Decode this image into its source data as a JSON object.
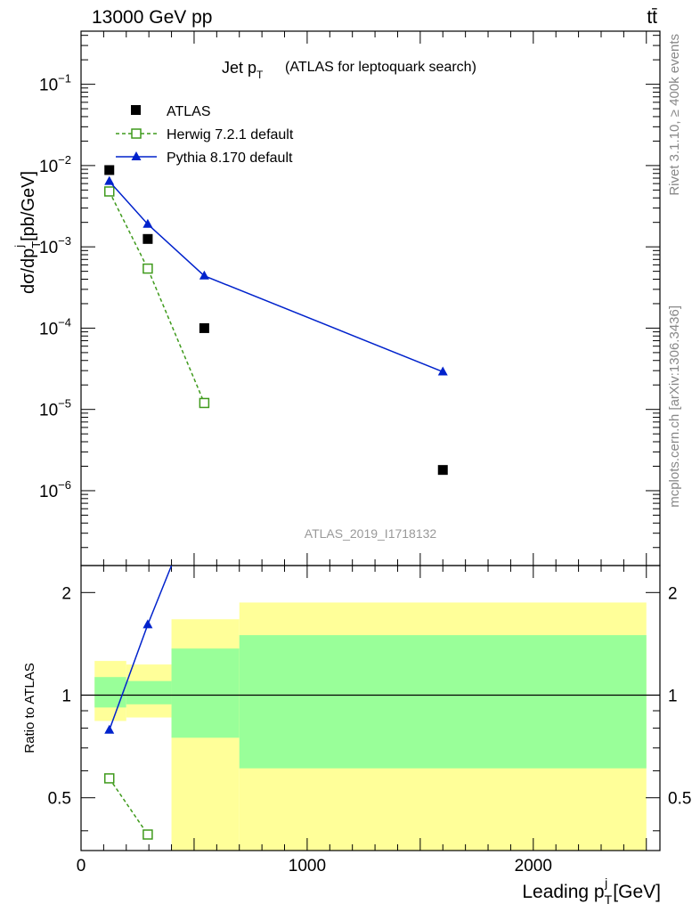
{
  "header": {
    "left": "13000 GeV pp",
    "right": "tt̄"
  },
  "side_text": {
    "upper": "Rivet 3.1.10, ≥ 400k events",
    "lower": "mcplots.cern.ch [arXiv:1306.3436]"
  },
  "watermark": "ATLAS_2019_I1718132",
  "chart_data": [
    {
      "type": "scatter",
      "title": "Jet p_T (ATLAS for leptoquark search)",
      "title_main": "Jet p",
      "title_sub": "T",
      "title_rest": "(ATLAS for leptoquark search)",
      "ylabel": "dσ/dp_T^j [pb/GeV]",
      "yscale": "log",
      "xlim": [
        0,
        2560
      ],
      "ylim": [
        1.2e-07,
        0.45
      ],
      "ytick_labels": [
        "10^-6",
        "10^-5",
        "10^-4",
        "10^-3",
        "10^-2",
        "10^-1"
      ],
      "legend_position": "top-left",
      "series": [
        {
          "name": "ATLAS",
          "marker": "square-filled",
          "color": "#000000",
          "x": [
            125,
            295,
            545,
            1600
          ],
          "y": [
            0.0088,
            0.00125,
            0.0001,
            1.8e-06
          ]
        },
        {
          "name": "Herwig 7.2.1 default",
          "marker": "square-open",
          "line": "dashed",
          "color": "#3f9a1c",
          "x": [
            125,
            295,
            545
          ],
          "y": [
            0.0048,
            0.00054,
            1.2e-05
          ]
        },
        {
          "name": "Pythia 8.170 default",
          "marker": "triangle-filled",
          "line": "solid",
          "color": "#0022cc",
          "x": [
            125,
            295,
            545,
            1600
          ],
          "y": [
            0.0064,
            0.0019,
            0.00044,
            2.9e-05
          ]
        }
      ]
    },
    {
      "type": "scatter",
      "ylabel": "Ratio to ATLAS",
      "yscale": "log",
      "xlabel": "Leading p_T^j [GeV]",
      "xlim": [
        0,
        2560
      ],
      "ylim": [
        0.35,
        2.4
      ],
      "xtick_labels": [
        "0",
        "1000",
        "2000"
      ],
      "ytick_labels": [
        "0.5",
        "1",
        "2"
      ],
      "bands": [
        {
          "x0": 60,
          "x1": 200,
          "yellow": [
            0.84,
            1.26
          ],
          "green": [
            0.92,
            1.13
          ]
        },
        {
          "x0": 200,
          "x1": 400,
          "yellow": [
            0.86,
            1.23
          ],
          "green": [
            0.94,
            1.1
          ]
        },
        {
          "x0": 400,
          "x1": 700,
          "yellow": [
            0.35,
            1.67
          ],
          "green": [
            0.75,
            1.37
          ]
        },
        {
          "x0": 700,
          "x1": 2500,
          "yellow": [
            0.35,
            1.87
          ],
          "green": [
            0.61,
            1.5
          ]
        }
      ],
      "series": [
        {
          "name": "Herwig 7.2.1 default",
          "color": "#3f9a1c",
          "x": [
            125,
            295
          ],
          "y": [
            0.57,
            0.39
          ]
        },
        {
          "name": "Pythia 8.170 default",
          "color": "#0022cc",
          "x": [
            125,
            295,
            400
          ],
          "y": [
            0.79,
            1.61,
            2.4
          ]
        }
      ]
    }
  ]
}
